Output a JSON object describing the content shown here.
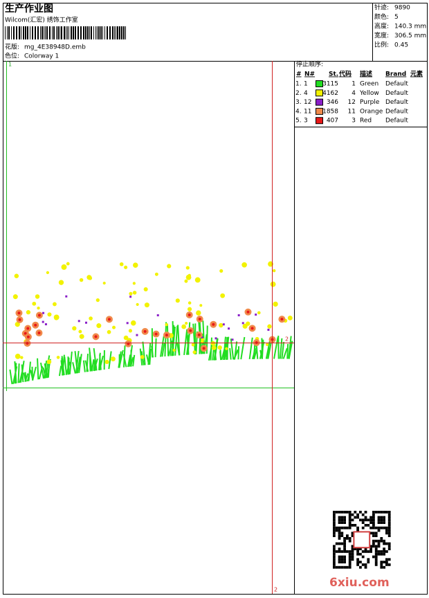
{
  "header": {
    "title": "生产作业图",
    "company": "Wilcom(汇宏) 绣饰工作室",
    "design_label": "花版:",
    "design": "mg_4E38948D.emb",
    "colorway_label": "色位:",
    "colorway": "Colorway 1"
  },
  "stats": [
    {
      "label": "针迹:",
      "value": "9890"
    },
    {
      "label": "颜色:",
      "value": "5"
    },
    {
      "label": "高度:",
      "value": "140.3 mm"
    },
    {
      "label": "宽度:",
      "value": "306.5 mm"
    },
    {
      "label": "比例:",
      "value": "0.45"
    }
  ],
  "sequence": {
    "title": "停止顺序:",
    "columns": [
      "#",
      "N#",
      "St.",
      "代码",
      "描述",
      "Brand",
      "元素"
    ],
    "rows": [
      {
        "index": "1.",
        "needle": "1",
        "color": "#22dd22",
        "stitches": "3115",
        "code": "1",
        "description": "Green",
        "brand": "Default"
      },
      {
        "index": "2.",
        "needle": "4",
        "color": "#f2f200",
        "stitches": "4162",
        "code": "4",
        "description": "Yellow",
        "brand": "Default"
      },
      {
        "index": "3.",
        "needle": "12",
        "color": "#8a1fc8",
        "stitches": "346",
        "code": "12",
        "description": "Purple",
        "brand": "Default"
      },
      {
        "index": "4.",
        "needle": "11",
        "color": "#f08a4b",
        "stitches": "1858",
        "code": "11",
        "description": "Orange",
        "brand": "Default"
      },
      {
        "index": "5.",
        "needle": "3",
        "color": "#e81818",
        "stitches": "407",
        "code": "3",
        "description": "Red",
        "brand": "Default"
      }
    ]
  },
  "markers": [
    "1",
    "2",
    "2"
  ],
  "watermark": "6xiu.com"
}
